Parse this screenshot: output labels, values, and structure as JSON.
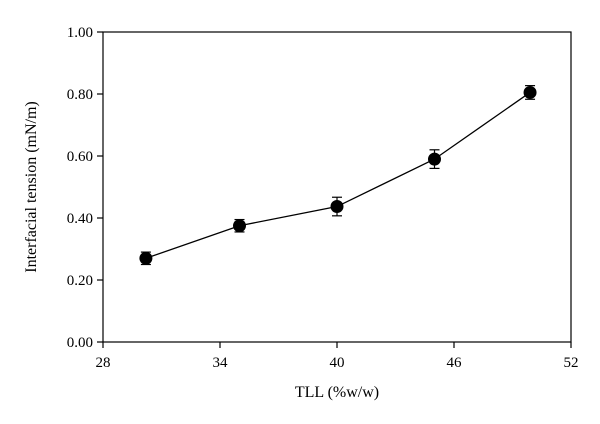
{
  "chart_data": {
    "type": "line",
    "title": "",
    "xlabel": "TLL (%w/w)",
    "ylabel": "Interfacial tension (mN/m)",
    "xlim": [
      28,
      52
    ],
    "ylim": [
      0,
      1
    ],
    "xticks": [
      28,
      34,
      40,
      46,
      52
    ],
    "xtick_labels": [
      "28",
      "34",
      "40",
      "46",
      "52"
    ],
    "yticks": [
      0,
      0.2,
      0.4,
      0.6,
      0.8,
      1.0
    ],
    "ytick_labels": [
      "0.00",
      "0.20",
      "0.40",
      "0.60",
      "0.80",
      "1.00"
    ],
    "grid": false,
    "legend": "none",
    "series": [
      {
        "x": [
          30.2,
          35.0,
          40.0,
          45.0,
          49.9
        ],
        "y": [
          0.27,
          0.375,
          0.437,
          0.59,
          0.805
        ],
        "error": [
          0.02,
          0.02,
          0.03,
          0.03,
          0.022
        ],
        "marker": "filled-circle",
        "color": "#000000"
      }
    ]
  }
}
